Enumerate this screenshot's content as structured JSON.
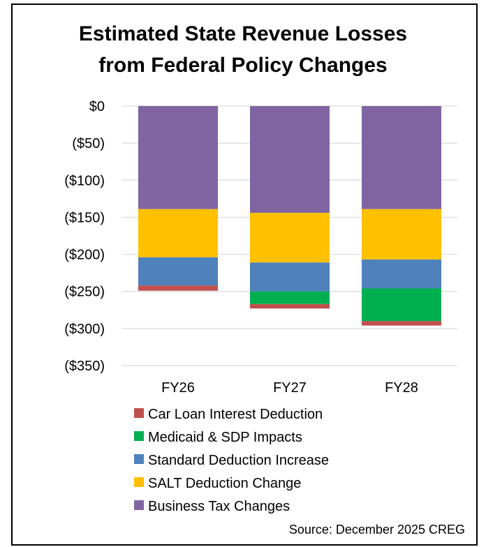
{
  "chart_data": {
    "type": "bar",
    "stacked": true,
    "title_lines": [
      "Estimated State Revenue Losses",
      "from Federal Policy Changes"
    ],
    "categories": [
      "FY26",
      "FY27",
      "FY28"
    ],
    "yticks": [
      "$0",
      "($50)",
      "($100)",
      "($150)",
      "($200)",
      "($250)",
      "($300)",
      "($350)"
    ],
    "ylim": [
      -350,
      0
    ],
    "grid": true,
    "legend_position": "bottom",
    "series": [
      {
        "name": "Business Tax Changes",
        "color": "#8064a2",
        "values": [
          -139,
          -144,
          -139
        ]
      },
      {
        "name": "SALT Deduction Change",
        "color": "#ffc000",
        "values": [
          -65,
          -67,
          -68
        ]
      },
      {
        "name": "Standard Deduction Increase",
        "color": "#4f81bd",
        "values": [
          -38,
          -39,
          -39
        ]
      },
      {
        "name": "Medicaid & SDP Impacts",
        "color": "#00b050",
        "values": [
          0,
          -17,
          -44
        ]
      },
      {
        "name": "Car Loan Interest Deduction",
        "color": "#c0504d",
        "values": [
          -7,
          -6,
          -6
        ]
      }
    ],
    "legend_order": [
      "Car Loan Interest Deduction",
      "Medicaid & SDP Impacts",
      "Standard Deduction Increase",
      "SALT Deduction Change",
      "Business Tax Changes"
    ],
    "source": "Source: December 2025 CREG"
  }
}
